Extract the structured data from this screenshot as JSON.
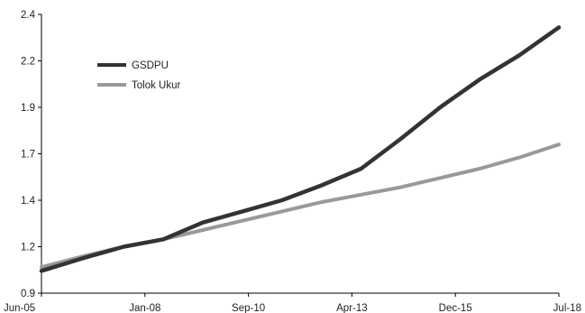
{
  "chart_data": {
    "type": "line",
    "title": "",
    "xlabel": "",
    "ylabel": "",
    "x_tick_labels": [
      "Jun-05",
      "Jan-08",
      "Sep-10",
      "Apr-13",
      "Dec-15",
      "Jul-18"
    ],
    "y_tick_labels": [
      "0.9",
      "1.2",
      "1.4",
      "1.7",
      "1.9",
      "2.2",
      "2.4"
    ],
    "ylim": [
      0.9,
      2.4
    ],
    "grid": false,
    "legend_position": "top-left",
    "x": [
      2005.42,
      2006.5,
      2007.5,
      2008.5,
      2009.5,
      2010.5,
      2011.5,
      2012.5,
      2013.5,
      2014.5,
      2015.5,
      2016.5,
      2017.5,
      2018.5
    ],
    "series": [
      {
        "name": "GSDPU",
        "color": "#333333",
        "values": [
          1.02,
          1.09,
          1.15,
          1.19,
          1.28,
          1.34,
          1.4,
          1.48,
          1.57,
          1.73,
          1.9,
          2.05,
          2.18,
          2.33
        ]
      },
      {
        "name": "Tolok Ukur",
        "color": "#999999",
        "values": [
          1.04,
          1.1,
          1.15,
          1.19,
          1.24,
          1.29,
          1.34,
          1.39,
          1.43,
          1.47,
          1.52,
          1.57,
          1.63,
          1.7
        ]
      }
    ]
  }
}
